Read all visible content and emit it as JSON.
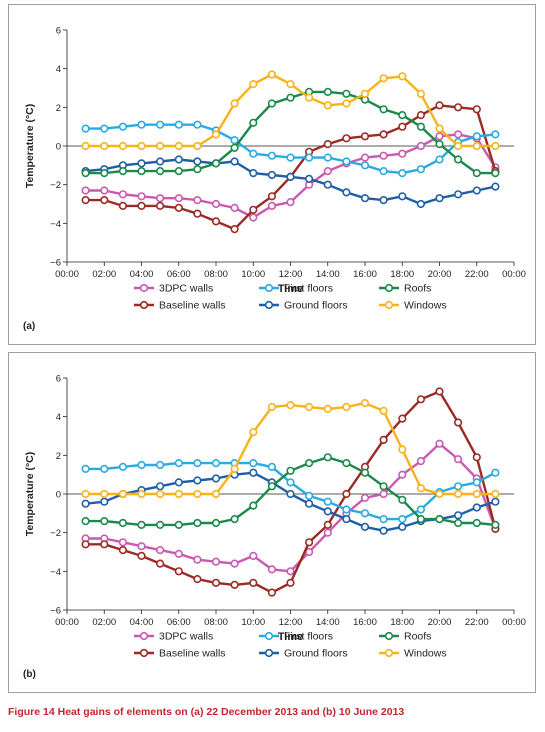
{
  "caption": {
    "figure_label": "Figure 14",
    "text": "Heat gains of elements on (a) 22 December 2013 and (b) 10 June 2013"
  },
  "chart_data": [
    {
      "type": "line",
      "panel_label": "(a)",
      "xlabel": "Time",
      "ylabel": "Temperature (°C)",
      "ylim": [
        -6,
        6
      ],
      "yticks": [
        "−6",
        "−4",
        "−2",
        "0",
        "2",
        "4",
        "6"
      ],
      "x_ticks": [
        "00:00",
        "02:00",
        "04:00",
        "06:00",
        "08:00",
        "10:00",
        "12:00",
        "14:00",
        "16:00",
        "18:00",
        "20:00",
        "22:00",
        "00:00"
      ],
      "x_hours": [
        1,
        2,
        3,
        4,
        5,
        6,
        7,
        8,
        9,
        10,
        11,
        12,
        13,
        14,
        15,
        16,
        17,
        18,
        19,
        20,
        21,
        22,
        23
      ],
      "grid": "none",
      "series": [
        {
          "name": "3DPC walls",
          "color": "#c95ab0",
          "values": [
            -2.3,
            -2.3,
            -2.5,
            -2.6,
            -2.7,
            -2.7,
            -2.8,
            -3.0,
            -3.2,
            -3.7,
            -3.1,
            -2.9,
            -2.0,
            -1.3,
            -0.9,
            -0.6,
            -0.5,
            -0.4,
            0.0,
            0.5,
            0.6,
            0.4,
            -1.1
          ]
        },
        {
          "name": "Baseline walls",
          "color": "#9a2a23",
          "values": [
            -2.8,
            -2.8,
            -3.1,
            -3.1,
            -3.1,
            -3.2,
            -3.5,
            -3.9,
            -4.3,
            -3.3,
            -2.6,
            -1.6,
            -0.3,
            0.1,
            0.4,
            0.5,
            0.6,
            1.0,
            1.6,
            2.1,
            2.0,
            1.9,
            -1.3
          ]
        },
        {
          "name": "First floors",
          "color": "#29abe2",
          "values": [
            0.9,
            0.9,
            1.0,
            1.1,
            1.1,
            1.1,
            1.1,
            0.8,
            0.3,
            -0.4,
            -0.5,
            -0.6,
            -0.6,
            -0.6,
            -0.8,
            -1.0,
            -1.3,
            -1.4,
            -1.2,
            -0.7,
            0.2,
            0.5,
            0.6
          ]
        },
        {
          "name": "Ground floors",
          "color": "#1f5fa8",
          "values": [
            -1.3,
            -1.2,
            -1.0,
            -0.9,
            -0.8,
            -0.7,
            -0.8,
            -0.9,
            -0.8,
            -1.4,
            -1.5,
            -1.6,
            -1.7,
            -2.0,
            -2.4,
            -2.7,
            -2.8,
            -2.6,
            -3.0,
            -2.7,
            -2.5,
            -2.3,
            -2.1
          ]
        },
        {
          "name": "Roofs",
          "color": "#1a8a4a",
          "values": [
            -1.4,
            -1.4,
            -1.3,
            -1.3,
            -1.3,
            -1.3,
            -1.2,
            -0.9,
            -0.1,
            1.2,
            2.2,
            2.5,
            2.8,
            2.8,
            2.7,
            2.4,
            1.9,
            1.6,
            1.0,
            0.1,
            -0.7,
            -1.4,
            -1.4
          ]
        },
        {
          "name": "Windows",
          "color": "#f9b21a",
          "values": [
            0.0,
            0.0,
            0.0,
            0.0,
            0.0,
            0.0,
            0.0,
            0.6,
            2.2,
            3.2,
            3.7,
            3.2,
            2.5,
            2.1,
            2.2,
            2.7,
            3.5,
            3.6,
            2.7,
            0.9,
            0.0,
            0.0,
            0.0
          ]
        }
      ],
      "legend": {
        "placement": "bottom",
        "order": [
          "3DPC walls",
          "First floors",
          "Roofs",
          "Baseline walls",
          "Ground floors",
          "Windows"
        ]
      }
    },
    {
      "type": "line",
      "panel_label": "(b)",
      "xlabel": "Time",
      "ylabel": "Temperature (°C)",
      "ylim": [
        -6,
        6
      ],
      "yticks": [
        "−6",
        "−4",
        "−2",
        "0",
        "2",
        "4",
        "6"
      ],
      "x_ticks": [
        "00:00",
        "02:00",
        "04:00",
        "06:00",
        "08:00",
        "10:00",
        "12:00",
        "14:00",
        "16:00",
        "18:00",
        "20:00",
        "22:00",
        "00:00"
      ],
      "x_hours": [
        1,
        2,
        3,
        4,
        5,
        6,
        7,
        8,
        9,
        10,
        11,
        12,
        13,
        14,
        15,
        16,
        17,
        18,
        19,
        20,
        21,
        22,
        23
      ],
      "grid": "none",
      "series": [
        {
          "name": "3DPC walls",
          "color": "#c95ab0",
          "values": [
            -2.3,
            -2.3,
            -2.5,
            -2.7,
            -2.9,
            -3.1,
            -3.4,
            -3.5,
            -3.6,
            -3.2,
            -3.9,
            -4.0,
            -3.0,
            -2.0,
            -1.0,
            -0.2,
            0.0,
            1.0,
            1.7,
            2.6,
            1.8,
            0.8,
            -1.8
          ]
        },
        {
          "name": "Baseline walls",
          "color": "#9a2a23",
          "values": [
            -2.6,
            -2.6,
            -2.9,
            -3.2,
            -3.6,
            -4.0,
            -4.4,
            -4.6,
            -4.7,
            -4.6,
            -5.1,
            -4.6,
            -2.5,
            -1.6,
            0.0,
            1.4,
            2.8,
            3.9,
            4.9,
            5.3,
            3.7,
            1.9,
            -1.8
          ]
        },
        {
          "name": "First floors",
          "color": "#29abe2",
          "values": [
            1.3,
            1.3,
            1.4,
            1.5,
            1.5,
            1.6,
            1.6,
            1.6,
            1.6,
            1.6,
            1.4,
            0.6,
            -0.1,
            -0.4,
            -0.8,
            -1.0,
            -1.3,
            -1.3,
            -0.8,
            0.1,
            0.4,
            0.6,
            1.1
          ]
        },
        {
          "name": "Ground floors",
          "color": "#1f5fa8",
          "values": [
            -0.5,
            -0.4,
            0.0,
            0.2,
            0.4,
            0.6,
            0.7,
            0.8,
            1.0,
            1.1,
            0.6,
            0.0,
            -0.5,
            -0.9,
            -1.3,
            -1.7,
            -1.9,
            -1.7,
            -1.4,
            -1.3,
            -1.1,
            -0.7,
            -0.4
          ]
        },
        {
          "name": "Roofs",
          "color": "#1a8a4a",
          "values": [
            -1.4,
            -1.4,
            -1.5,
            -1.6,
            -1.6,
            -1.6,
            -1.5,
            -1.5,
            -1.3,
            -0.6,
            0.4,
            1.2,
            1.6,
            1.9,
            1.6,
            1.1,
            0.4,
            -0.3,
            -1.3,
            -1.3,
            -1.5,
            -1.5,
            -1.6
          ]
        },
        {
          "name": "Windows",
          "color": "#f9b21a",
          "values": [
            0.0,
            0.0,
            0.0,
            0.0,
            0.0,
            0.0,
            0.0,
            0.0,
            1.3,
            3.2,
            4.5,
            4.6,
            4.5,
            4.4,
            4.5,
            4.7,
            4.3,
            2.3,
            0.3,
            0.0,
            0.0,
            0.0,
            0.0
          ]
        }
      ],
      "legend": {
        "placement": "bottom",
        "order": [
          "3DPC walls",
          "First floors",
          "Roofs",
          "Baseline walls",
          "Ground floors",
          "Windows"
        ]
      }
    }
  ]
}
